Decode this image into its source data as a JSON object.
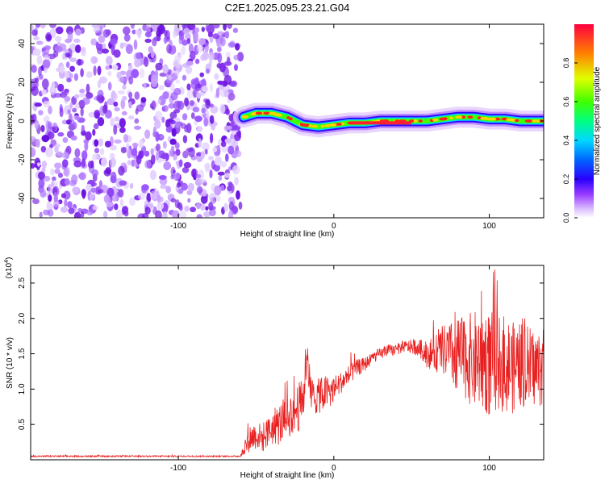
{
  "chart_data": [
    {
      "type": "heatmap",
      "title": "C2E1.2025.095.23.21.G04",
      "xlabel": "Height of straight line (km)",
      "ylabel": "Frequency (Hz)",
      "xlim": [
        -195,
        135
      ],
      "ylim": [
        -50,
        50
      ],
      "xticks": [
        -100,
        0,
        100
      ],
      "yticks": [
        -40,
        -20,
        0,
        20,
        40
      ],
      "colorbar": {
        "label": "Normalized spectral amplitude",
        "range": [
          0,
          1
        ],
        "ticks": [
          0,
          0.2,
          0.4,
          0.6,
          0.8
        ]
      },
      "noise_region_x": [
        -195,
        -60
      ],
      "ridge": [
        {
          "x": -58,
          "freq": 2
        },
        {
          "x": -50,
          "freq": 4
        },
        {
          "x": -40,
          "freq": 4
        },
        {
          "x": -30,
          "freq": 2
        },
        {
          "x": -20,
          "freq": -2
        },
        {
          "x": -10,
          "freq": -3
        },
        {
          "x": 0,
          "freq": -2
        },
        {
          "x": 10,
          "freq": -1
        },
        {
          "x": 20,
          "freq": -1
        },
        {
          "x": 30,
          "freq": 0
        },
        {
          "x": 40,
          "freq": 0
        },
        {
          "x": 50,
          "freq": 0
        },
        {
          "x": 60,
          "freq": 0
        },
        {
          "x": 70,
          "freq": 1
        },
        {
          "x": 80,
          "freq": 2
        },
        {
          "x": 90,
          "freq": 2
        },
        {
          "x": 100,
          "freq": 1
        },
        {
          "x": 110,
          "freq": 1
        },
        {
          "x": 120,
          "freq": 0
        },
        {
          "x": 130,
          "freq": 0
        },
        {
          "x": 135,
          "freq": 0
        }
      ]
    },
    {
      "type": "line",
      "xlabel": "Height of straight line (km)",
      "ylabel": "SNR (10 * v/v)",
      "multiplier_label": "(x10",
      "multiplier_exp": "4",
      "xlim": [
        -195,
        135
      ],
      "ylim": [
        0,
        2.75
      ],
      "xticks": [
        -100,
        0,
        100
      ],
      "yticks": [
        0.5,
        1.0,
        1.5,
        2.0,
        2.5
      ],
      "ytick_labels": [
        "0.5",
        "1.0",
        "1.5",
        "2.0",
        "2.5"
      ],
      "color": "#e82020",
      "series": [
        {
          "x": [
            -195,
            -60,
            -55,
            -50,
            -45,
            -40,
            -35,
            -30,
            -25,
            -20,
            -17,
            -15,
            -10,
            -5,
            0,
            5,
            10,
            15,
            20,
            25,
            30,
            35,
            40,
            45,
            50,
            55,
            60,
            65,
            70,
            75,
            80,
            85,
            90,
            95,
            100,
            105,
            110,
            115,
            120,
            125,
            130,
            135
          ],
          "values": [
            0.05,
            0.05,
            0.3,
            0.35,
            0.3,
            0.45,
            0.5,
            0.6,
            0.7,
            0.8,
            1.6,
            0.9,
            0.9,
            0.95,
            1.0,
            1.1,
            1.2,
            1.3,
            1.35,
            1.45,
            1.5,
            1.55,
            1.55,
            1.6,
            1.6,
            1.58,
            1.5,
            1.5,
            1.55,
            1.5,
            1.45,
            1.45,
            1.4,
            1.45,
            1.35,
            1.4,
            1.35,
            1.3,
            1.35,
            1.3,
            1.3,
            1.3
          ],
          "spread": [
            0.01,
            0.01,
            0.2,
            0.2,
            0.2,
            0.25,
            0.3,
            0.3,
            0.35,
            0.35,
            0.3,
            0.3,
            0.25,
            0.25,
            0.2,
            0.15,
            0.15,
            0.12,
            0.1,
            0.08,
            0.08,
            0.08,
            0.08,
            0.08,
            0.1,
            0.12,
            0.2,
            0.25,
            0.35,
            0.45,
            0.55,
            0.6,
            0.7,
            0.75,
            0.75,
            0.7,
            0.7,
            0.65,
            0.6,
            0.6,
            0.55,
            0.55
          ]
        }
      ]
    }
  ]
}
